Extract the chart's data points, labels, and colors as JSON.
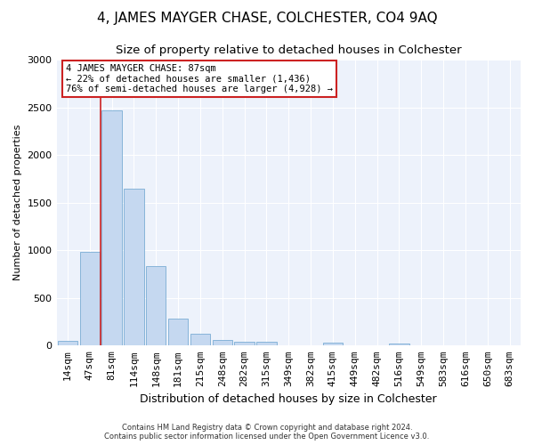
{
  "title": "4, JAMES MAYGER CHASE, COLCHESTER, CO4 9AQ",
  "subtitle": "Size of property relative to detached houses in Colchester",
  "xlabel": "Distribution of detached houses by size in Colchester",
  "ylabel": "Number of detached properties",
  "categories": [
    "14sqm",
    "47sqm",
    "81sqm",
    "114sqm",
    "148sqm",
    "181sqm",
    "215sqm",
    "248sqm",
    "282sqm",
    "315sqm",
    "349sqm",
    "382sqm",
    "415sqm",
    "449sqm",
    "482sqm",
    "516sqm",
    "549sqm",
    "583sqm",
    "616sqm",
    "650sqm",
    "683sqm"
  ],
  "values": [
    50,
    980,
    2470,
    1650,
    830,
    280,
    125,
    55,
    40,
    40,
    0,
    0,
    35,
    0,
    0,
    25,
    0,
    0,
    0,
    0,
    0
  ],
  "bar_color": "#c5d8f0",
  "bar_edge_color": "#7aadd4",
  "annotation_text": "4 JAMES MAYGER CHASE: 87sqm\n← 22% of detached houses are smaller (1,436)\n76% of semi-detached houses are larger (4,928) →",
  "annotation_box_color": "#ffffff",
  "annotation_box_edge_color": "#cc2222",
  "red_line_color": "#cc2222",
  "red_line_x": 1.5,
  "ylim": [
    0,
    3000
  ],
  "yticks": [
    0,
    500,
    1000,
    1500,
    2000,
    2500,
    3000
  ],
  "background_color": "#edf2fb",
  "grid_color": "#ffffff",
  "footer_text": "Contains HM Land Registry data © Crown copyright and database right 2024.\nContains public sector information licensed under the Open Government Licence v3.0.",
  "title_fontsize": 11,
  "subtitle_fontsize": 9.5,
  "xlabel_fontsize": 9,
  "ylabel_fontsize": 8,
  "tick_fontsize": 8,
  "annotation_fontsize": 7.5,
  "footer_fontsize": 6
}
